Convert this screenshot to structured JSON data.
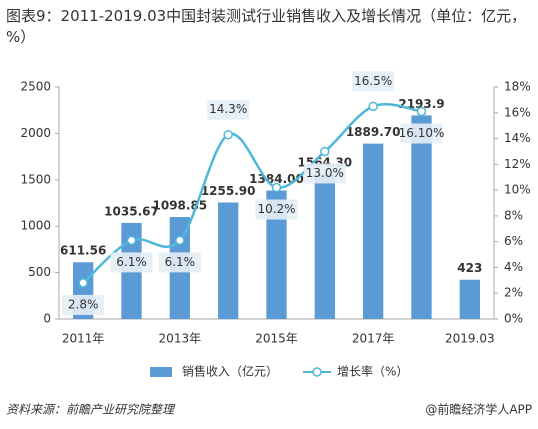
{
  "chart_data": {
    "type": "bar_line",
    "title": "图表9：2011-2019.03中国封装测试行业销售收入及增长情况（单位：亿元，%）",
    "source": "资料来源：前瞻产业研究院整理",
    "credit": "@前瞻经济学人APP",
    "categories": [
      "2011年",
      null,
      "2013年",
      null,
      "2015年",
      null,
      "2017年",
      null,
      "2019.03"
    ],
    "series": [
      {
        "name": "销售收入（亿元）",
        "type": "bar",
        "color": "#5b9bd5",
        "values": [
          611.56,
          1035.67,
          1098.85,
          1255.9,
          1384.0,
          1564.3,
          1889.7,
          2193.9,
          423
        ],
        "value_labels": [
          "611.56",
          "1035.67",
          "1098.85",
          "1255.90",
          "1384.00",
          "1564.30",
          "1889.70",
          "2193.9",
          "423"
        ]
      },
      {
        "name": "增长率（%）",
        "type": "line",
        "axis": "y2",
        "color": "#4fb8d9",
        "values": [
          2.8,
          6.1,
          6.1,
          14.3,
          10.2,
          13.0,
          16.5,
          16.1,
          null
        ],
        "value_labels": [
          "2.8%",
          "6.1%",
          "6.1%",
          "14.3%",
          "10.2%",
          "13.0%",
          "16.5%",
          "16.10%",
          null
        ]
      }
    ],
    "ylim": [
      0,
      2500
    ],
    "yticks": [
      0,
      500,
      1000,
      1500,
      2000,
      2500
    ],
    "y2lim": [
      0,
      18
    ],
    "y2ticks": [
      {
        "value": 0,
        "label": "0%"
      },
      {
        "value": 2,
        "label": "2%"
      },
      {
        "value": 4,
        "label": "4%"
      },
      {
        "value": 6,
        "label": "6%"
      },
      {
        "value": 8,
        "label": "8%"
      },
      {
        "value": 10,
        "label": "10%"
      },
      {
        "value": 12,
        "label": "12%"
      },
      {
        "value": 14,
        "label": "14%"
      },
      {
        "value": 16,
        "label": "16%"
      },
      {
        "value": 18,
        "label": "18%"
      }
    ],
    "legend": "bottom"
  }
}
